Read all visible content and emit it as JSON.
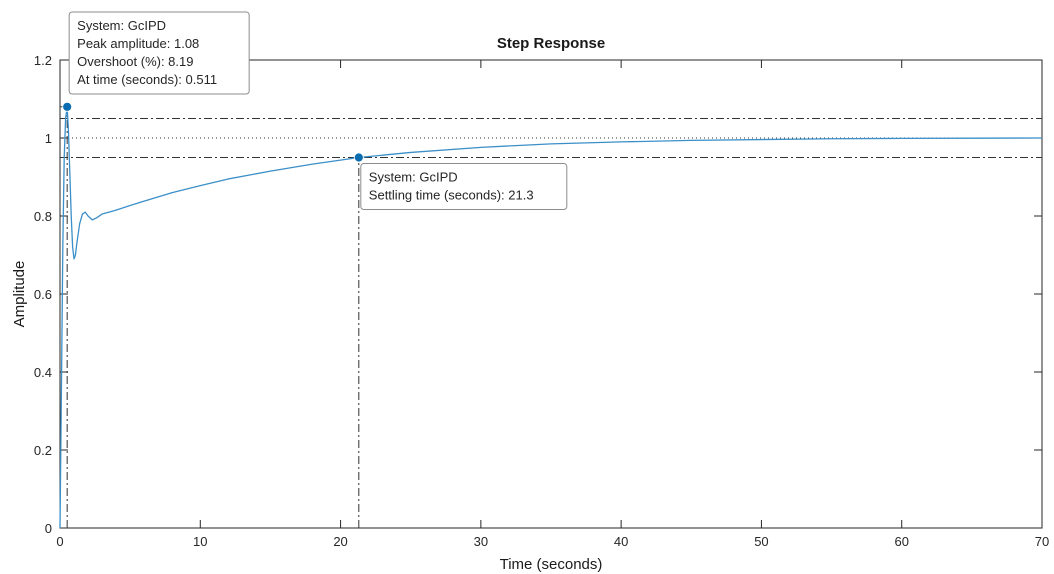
{
  "colors": {
    "series": "#3b8fc8",
    "marker": "#0a6cb0",
    "axis": "#262626",
    "reference_line": "#333333",
    "tooltip_border": "#8c8c8c",
    "tooltip_fill": "#ffffff"
  },
  "chart_data": {
    "type": "line",
    "title": "Step Response",
    "xlabel": "Time (seconds)",
    "ylabel": "Amplitude",
    "xlim": [
      0,
      70
    ],
    "ylim": [
      0,
      1.2
    ],
    "xticks": [
      0,
      10,
      20,
      30,
      40,
      50,
      60,
      70
    ],
    "yticks": [
      0,
      0.2,
      0.4,
      0.6,
      0.8,
      1,
      1.2
    ],
    "grid": false,
    "series": [
      {
        "x": [
          0,
          0.1,
          0.2,
          0.3,
          0.4,
          0.511,
          0.6,
          0.7,
          0.8,
          0.9,
          1.0,
          1.1,
          1.2,
          1.4,
          1.6,
          1.8,
          2.0,
          2.3,
          2.6,
          3.0,
          3.5,
          4,
          5,
          6,
          8,
          10,
          12,
          15,
          18,
          21.3,
          25,
          30,
          35,
          40,
          45,
          50,
          55,
          60,
          65,
          70
        ],
        "y": [
          0,
          0.35,
          0.72,
          0.95,
          1.05,
          1.08,
          1.02,
          0.91,
          0.8,
          0.72,
          0.69,
          0.7,
          0.73,
          0.78,
          0.805,
          0.81,
          0.8,
          0.79,
          0.795,
          0.805,
          0.81,
          0.815,
          0.827,
          0.838,
          0.86,
          0.878,
          0.895,
          0.915,
          0.933,
          0.95,
          0.963,
          0.976,
          0.985,
          0.99,
          0.994,
          0.996,
          0.998,
          0.999,
          0.9995,
          1.0
        ]
      }
    ],
    "reference": {
      "steady_state": 1.0,
      "settling_band": [
        0.95,
        1.05
      ]
    },
    "annotations": [
      {
        "x": 0.511,
        "y": 1.08,
        "lines": [
          "System: GcIPD",
          "Peak amplitude: 1.08",
          "Overshoot (%): 8.19",
          "At time (seconds): 0.511"
        ]
      },
      {
        "x": 21.3,
        "y": 0.95,
        "lines": [
          "System: GcIPD",
          "Settling time (seconds): 21.3"
        ]
      }
    ]
  }
}
